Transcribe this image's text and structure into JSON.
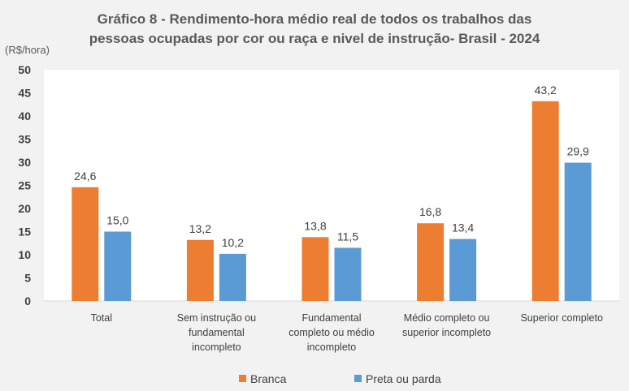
{
  "chart_data": {
    "type": "bar",
    "title_lines": [
      "Gráfico 8 - Rendimento-hora médio real de todos os trabalhos das",
      "pessoas ocupadas por cor ou raça  e nivel de instrução- Brasil - 2024"
    ],
    "ylabel": "(R$/hora)",
    "ylim": [
      0,
      50
    ],
    "yticks": [
      0,
      5,
      10,
      15,
      20,
      25,
      30,
      35,
      40,
      45,
      50
    ],
    "grid": false,
    "legend_position": "bottom",
    "categories": [
      [
        "Total"
      ],
      [
        "Sem instrução ou",
        "fundamental",
        "incompleto"
      ],
      [
        "Fundamental",
        "completo ou médio",
        "incompleto"
      ],
      [
        "Médio completo ou",
        "superior incompleto"
      ],
      [
        "Superior completo"
      ]
    ],
    "series": [
      {
        "name": "Branca",
        "color": "#ed7d31",
        "values": [
          24.6,
          13.2,
          13.8,
          16.8,
          43.2
        ],
        "labels": [
          "24,6",
          "13,2",
          "13,8",
          "16,8",
          "43,2"
        ]
      },
      {
        "name": "Preta ou parda",
        "color": "#5b9bd5",
        "values": [
          15.0,
          10.2,
          11.5,
          13.4,
          29.9
        ],
        "labels": [
          "15,0",
          "10,2",
          "11,5",
          "13,4",
          "29,9"
        ]
      }
    ]
  }
}
